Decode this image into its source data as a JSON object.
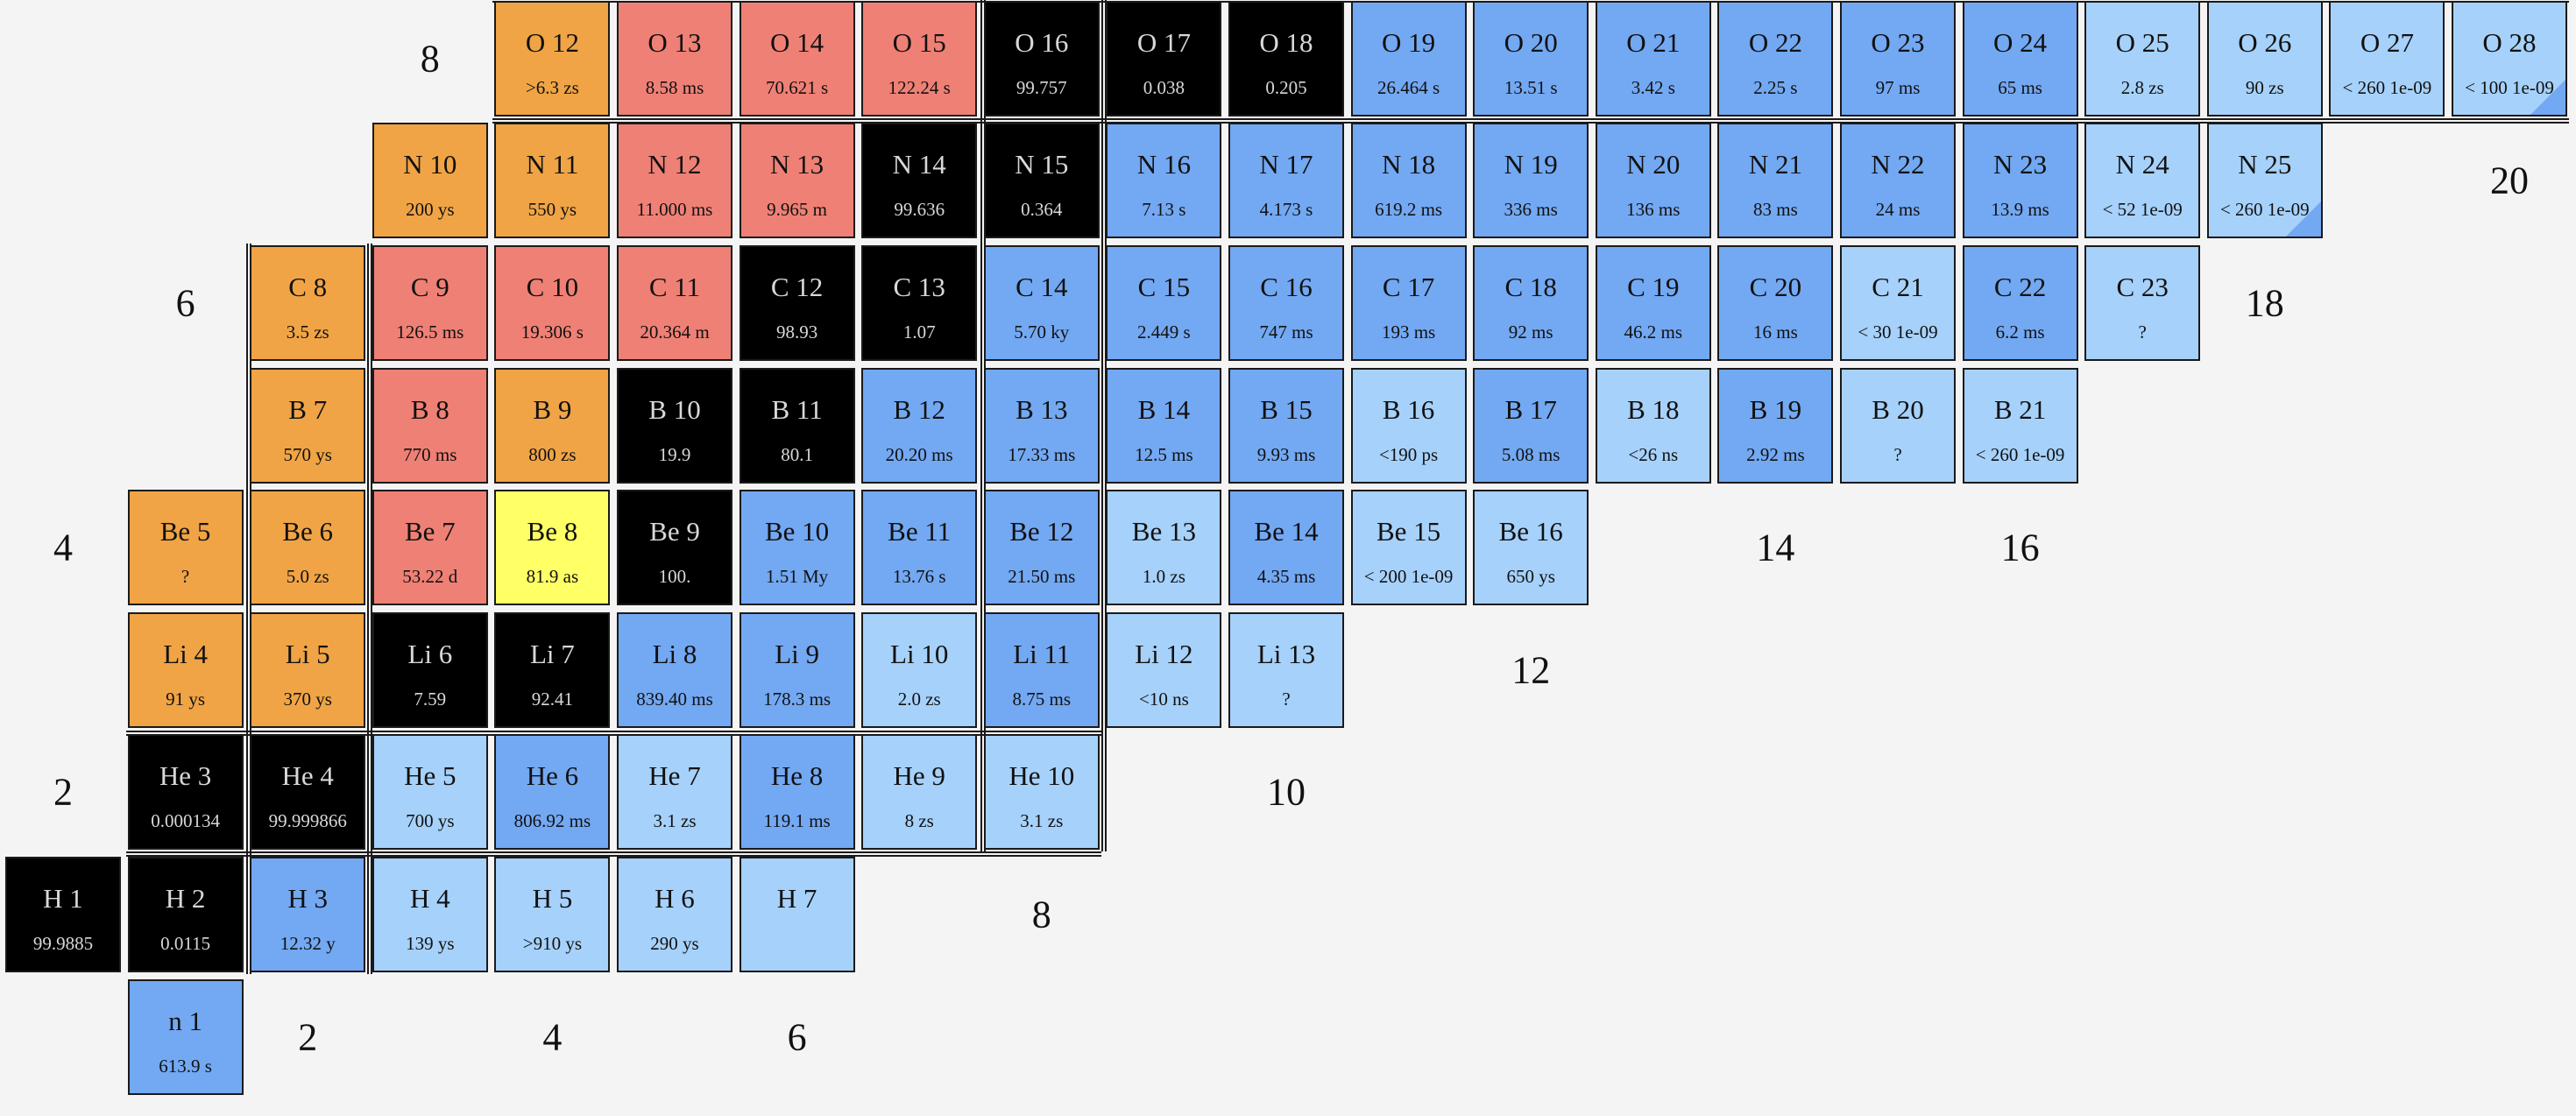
{
  "chart_data": {
    "type": "table",
    "x_field": "neutron_number",
    "y_field": "proton_number",
    "legend_colors": {
      "stable": "#000000",
      "beta_minus": "#73a8f2",
      "neutron_emission": "#a6d1fa",
      "beta_plus": "#ef8075",
      "proton_emission": "#f0a445",
      "alpha": "#ffff66"
    },
    "nuclides": [
      {
        "symbol": "n 1",
        "value": "613.9 s",
        "z": 0,
        "n": 1,
        "mode": "beta_minus"
      },
      {
        "symbol": "H 1",
        "value": "99.9885",
        "z": 1,
        "n": 0,
        "mode": "stable"
      },
      {
        "symbol": "H 2",
        "value": "0.0115",
        "z": 1,
        "n": 1,
        "mode": "stable"
      },
      {
        "symbol": "H 3",
        "value": "12.32 y",
        "z": 1,
        "n": 2,
        "mode": "beta_minus"
      },
      {
        "symbol": "H 4",
        "value": "139 ys",
        "z": 1,
        "n": 3,
        "mode": "neutron_emission"
      },
      {
        "symbol": "H 5",
        "value": ">910 ys",
        "z": 1,
        "n": 4,
        "mode": "neutron_emission"
      },
      {
        "symbol": "H 6",
        "value": "290 ys",
        "z": 1,
        "n": 5,
        "mode": "neutron_emission"
      },
      {
        "symbol": "H 7",
        "value": "",
        "z": 1,
        "n": 6,
        "mode": "neutron_emission"
      },
      {
        "symbol": "He 3",
        "value": "0.000134",
        "z": 2,
        "n": 1,
        "mode": "stable"
      },
      {
        "symbol": "He 4",
        "value": "99.999866",
        "z": 2,
        "n": 2,
        "mode": "stable"
      },
      {
        "symbol": "He 5",
        "value": "700 ys",
        "z": 2,
        "n": 3,
        "mode": "neutron_emission"
      },
      {
        "symbol": "He 6",
        "value": "806.92 ms",
        "z": 2,
        "n": 4,
        "mode": "beta_minus"
      },
      {
        "symbol": "He 7",
        "value": "3.1 zs",
        "z": 2,
        "n": 5,
        "mode": "neutron_emission"
      },
      {
        "symbol": "He 8",
        "value": "119.1 ms",
        "z": 2,
        "n": 6,
        "mode": "beta_minus"
      },
      {
        "symbol": "He 9",
        "value": "8 zs",
        "z": 2,
        "n": 7,
        "mode": "neutron_emission"
      },
      {
        "symbol": "He 10",
        "value": "3.1 zs",
        "z": 2,
        "n": 8,
        "mode": "neutron_emission"
      },
      {
        "symbol": "Li 4",
        "value": "91 ys",
        "z": 3,
        "n": 1,
        "mode": "proton_emission"
      },
      {
        "symbol": "Li 5",
        "value": "370 ys",
        "z": 3,
        "n": 2,
        "mode": "proton_emission"
      },
      {
        "symbol": "Li 6",
        "value": "7.59",
        "z": 3,
        "n": 3,
        "mode": "stable"
      },
      {
        "symbol": "Li 7",
        "value": "92.41",
        "z": 3,
        "n": 4,
        "mode": "stable"
      },
      {
        "symbol": "Li 8",
        "value": "839.40 ms",
        "z": 3,
        "n": 5,
        "mode": "beta_minus"
      },
      {
        "symbol": "Li 9",
        "value": "178.3 ms",
        "z": 3,
        "n": 6,
        "mode": "beta_minus"
      },
      {
        "symbol": "Li 10",
        "value": "2.0 zs",
        "z": 3,
        "n": 7,
        "mode": "neutron_emission"
      },
      {
        "symbol": "Li 11",
        "value": "8.75 ms",
        "z": 3,
        "n": 8,
        "mode": "beta_minus"
      },
      {
        "symbol": "Li 12",
        "value": "<10 ns",
        "z": 3,
        "n": 9,
        "mode": "neutron_emission"
      },
      {
        "symbol": "Li 13",
        "value": "?",
        "z": 3,
        "n": 10,
        "mode": "neutron_emission"
      },
      {
        "symbol": "Be 5",
        "value": "?",
        "z": 4,
        "n": 1,
        "mode": "proton_emission"
      },
      {
        "symbol": "Be 6",
        "value": "5.0 zs",
        "z": 4,
        "n": 2,
        "mode": "proton_emission"
      },
      {
        "symbol": "Be 7",
        "value": "53.22 d",
        "z": 4,
        "n": 3,
        "mode": "beta_plus"
      },
      {
        "symbol": "Be 8",
        "value": "81.9 as",
        "z": 4,
        "n": 4,
        "mode": "alpha"
      },
      {
        "symbol": "Be 9",
        "value": "100.",
        "z": 4,
        "n": 5,
        "mode": "stable"
      },
      {
        "symbol": "Be 10",
        "value": "1.51 My",
        "z": 4,
        "n": 6,
        "mode": "beta_minus"
      },
      {
        "symbol": "Be 11",
        "value": "13.76 s",
        "z": 4,
        "n": 7,
        "mode": "beta_minus"
      },
      {
        "symbol": "Be 12",
        "value": "21.50 ms",
        "z": 4,
        "n": 8,
        "mode": "beta_minus"
      },
      {
        "symbol": "Be 13",
        "value": "1.0 zs",
        "z": 4,
        "n": 9,
        "mode": "neutron_emission"
      },
      {
        "symbol": "Be 14",
        "value": "4.35 ms",
        "z": 4,
        "n": 10,
        "mode": "beta_minus"
      },
      {
        "symbol": "Be 15",
        "value": "< 200 1e-09",
        "z": 4,
        "n": 11,
        "mode": "neutron_emission"
      },
      {
        "symbol": "Be 16",
        "value": "650 ys",
        "z": 4,
        "n": 12,
        "mode": "neutron_emission"
      },
      {
        "symbol": "B 7",
        "value": "570 ys",
        "z": 5,
        "n": 2,
        "mode": "proton_emission"
      },
      {
        "symbol": "B 8",
        "value": "770 ms",
        "z": 5,
        "n": 3,
        "mode": "beta_plus"
      },
      {
        "symbol": "B 9",
        "value": "800 zs",
        "z": 5,
        "n": 4,
        "mode": "proton_emission"
      },
      {
        "symbol": "B 10",
        "value": "19.9",
        "z": 5,
        "n": 5,
        "mode": "stable"
      },
      {
        "symbol": "B 11",
        "value": "80.1",
        "z": 5,
        "n": 6,
        "mode": "stable"
      },
      {
        "symbol": "B 12",
        "value": "20.20 ms",
        "z": 5,
        "n": 7,
        "mode": "beta_minus"
      },
      {
        "symbol": "B 13",
        "value": "17.33 ms",
        "z": 5,
        "n": 8,
        "mode": "beta_minus"
      },
      {
        "symbol": "B 14",
        "value": "12.5 ms",
        "z": 5,
        "n": 9,
        "mode": "beta_minus"
      },
      {
        "symbol": "B 15",
        "value": "9.93 ms",
        "z": 5,
        "n": 10,
        "mode": "beta_minus"
      },
      {
        "symbol": "B 16",
        "value": "<190 ps",
        "z": 5,
        "n": 11,
        "mode": "neutron_emission"
      },
      {
        "symbol": "B 17",
        "value": "5.08 ms",
        "z": 5,
        "n": 12,
        "mode": "beta_minus"
      },
      {
        "symbol": "B 18",
        "value": "<26 ns",
        "z": 5,
        "n": 13,
        "mode": "neutron_emission"
      },
      {
        "symbol": "B 19",
        "value": "2.92 ms",
        "z": 5,
        "n": 14,
        "mode": "beta_minus"
      },
      {
        "symbol": "B 20",
        "value": "?",
        "z": 5,
        "n": 15,
        "mode": "neutron_emission"
      },
      {
        "symbol": "B 21",
        "value": "< 260 1e-09",
        "z": 5,
        "n": 16,
        "mode": "neutron_emission"
      },
      {
        "symbol": "C 8",
        "value": "3.5 zs",
        "z": 6,
        "n": 2,
        "mode": "proton_emission"
      },
      {
        "symbol": "C 9",
        "value": "126.5 ms",
        "z": 6,
        "n": 3,
        "mode": "beta_plus"
      },
      {
        "symbol": "C 10",
        "value": "19.306 s",
        "z": 6,
        "n": 4,
        "mode": "beta_plus"
      },
      {
        "symbol": "C 11",
        "value": "20.364 m",
        "z": 6,
        "n": 5,
        "mode": "beta_plus"
      },
      {
        "symbol": "C 12",
        "value": "98.93",
        "z": 6,
        "n": 6,
        "mode": "stable"
      },
      {
        "symbol": "C 13",
        "value": "1.07",
        "z": 6,
        "n": 7,
        "mode": "stable"
      },
      {
        "symbol": "C 14",
        "value": "5.70 ky",
        "z": 6,
        "n": 8,
        "mode": "beta_minus"
      },
      {
        "symbol": "C 15",
        "value": "2.449 s",
        "z": 6,
        "n": 9,
        "mode": "beta_minus"
      },
      {
        "symbol": "C 16",
        "value": "747 ms",
        "z": 6,
        "n": 10,
        "mode": "beta_minus"
      },
      {
        "symbol": "C 17",
        "value": "193 ms",
        "z": 6,
        "n": 11,
        "mode": "beta_minus"
      },
      {
        "symbol": "C 18",
        "value": "92 ms",
        "z": 6,
        "n": 12,
        "mode": "beta_minus"
      },
      {
        "symbol": "C 19",
        "value": "46.2 ms",
        "z": 6,
        "n": 13,
        "mode": "beta_minus"
      },
      {
        "symbol": "C 20",
        "value": "16 ms",
        "z": 6,
        "n": 14,
        "mode": "beta_minus"
      },
      {
        "symbol": "C 21",
        "value": "< 30 1e-09",
        "z": 6,
        "n": 15,
        "mode": "neutron_emission"
      },
      {
        "symbol": "C 22",
        "value": "6.2 ms",
        "z": 6,
        "n": 16,
        "mode": "beta_minus"
      },
      {
        "symbol": "C 23",
        "value": "?",
        "z": 6,
        "n": 17,
        "mode": "neutron_emission"
      },
      {
        "symbol": "N 10",
        "value": "200 ys",
        "z": 7,
        "n": 3,
        "mode": "proton_emission"
      },
      {
        "symbol": "N 11",
        "value": "550 ys",
        "z": 7,
        "n": 4,
        "mode": "proton_emission"
      },
      {
        "symbol": "N 12",
        "value": "11.000 ms",
        "z": 7,
        "n": 5,
        "mode": "beta_plus"
      },
      {
        "symbol": "N 13",
        "value": "9.965 m",
        "z": 7,
        "n": 6,
        "mode": "beta_plus"
      },
      {
        "symbol": "N 14",
        "value": "99.636",
        "z": 7,
        "n": 7,
        "mode": "stable"
      },
      {
        "symbol": "N 15",
        "value": "0.364",
        "z": 7,
        "n": 8,
        "mode": "stable"
      },
      {
        "symbol": "N 16",
        "value": "7.13 s",
        "z": 7,
        "n": 9,
        "mode": "beta_minus"
      },
      {
        "symbol": "N 17",
        "value": "4.173 s",
        "z": 7,
        "n": 10,
        "mode": "beta_minus"
      },
      {
        "symbol": "N 18",
        "value": "619.2 ms",
        "z": 7,
        "n": 11,
        "mode": "beta_minus"
      },
      {
        "symbol": "N 19",
        "value": "336 ms",
        "z": 7,
        "n": 12,
        "mode": "beta_minus"
      },
      {
        "symbol": "N 20",
        "value": "136 ms",
        "z": 7,
        "n": 13,
        "mode": "beta_minus"
      },
      {
        "symbol": "N 21",
        "value": "83 ms",
        "z": 7,
        "n": 14,
        "mode": "beta_minus"
      },
      {
        "symbol": "N 22",
        "value": "24 ms",
        "z": 7,
        "n": 15,
        "mode": "beta_minus"
      },
      {
        "symbol": "N 23",
        "value": "13.9 ms",
        "z": 7,
        "n": 16,
        "mode": "beta_minus"
      },
      {
        "symbol": "N 24",
        "value": "< 52 1e-09",
        "z": 7,
        "n": 17,
        "mode": "neutron_emission"
      },
      {
        "symbol": "N 25",
        "value": "< 260 1e-09",
        "z": 7,
        "n": 18,
        "mode": "neutron_emission",
        "corner": true
      },
      {
        "symbol": "O 12",
        "value": ">6.3 zs",
        "z": 8,
        "n": 4,
        "mode": "proton_emission"
      },
      {
        "symbol": "O 13",
        "value": "8.58 ms",
        "z": 8,
        "n": 5,
        "mode": "beta_plus"
      },
      {
        "symbol": "O 14",
        "value": "70.621 s",
        "z": 8,
        "n": 6,
        "mode": "beta_plus"
      },
      {
        "symbol": "O 15",
        "value": "122.24 s",
        "z": 8,
        "n": 7,
        "mode": "beta_plus"
      },
      {
        "symbol": "O 16",
        "value": "99.757",
        "z": 8,
        "n": 8,
        "mode": "stable"
      },
      {
        "symbol": "O 17",
        "value": "0.038",
        "z": 8,
        "n": 9,
        "mode": "stable"
      },
      {
        "symbol": "O 18",
        "value": "0.205",
        "z": 8,
        "n": 10,
        "mode": "stable"
      },
      {
        "symbol": "O 19",
        "value": "26.464 s",
        "z": 8,
        "n": 11,
        "mode": "beta_minus"
      },
      {
        "symbol": "O 20",
        "value": "13.51 s",
        "z": 8,
        "n": 12,
        "mode": "beta_minus"
      },
      {
        "symbol": "O 21",
        "value": "3.42 s",
        "z": 8,
        "n": 13,
        "mode": "beta_minus"
      },
      {
        "symbol": "O 22",
        "value": "2.25 s",
        "z": 8,
        "n": 14,
        "mode": "beta_minus"
      },
      {
        "symbol": "O 23",
        "value": "97 ms",
        "z": 8,
        "n": 15,
        "mode": "beta_minus"
      },
      {
        "symbol": "O 24",
        "value": "65 ms",
        "z": 8,
        "n": 16,
        "mode": "beta_minus"
      },
      {
        "symbol": "O 25",
        "value": "2.8 zs",
        "z": 8,
        "n": 17,
        "mode": "neutron_emission"
      },
      {
        "symbol": "O 26",
        "value": "90 zs",
        "z": 8,
        "n": 18,
        "mode": "neutron_emission"
      },
      {
        "symbol": "O 27",
        "value": "< 260 1e-09",
        "z": 8,
        "n": 19,
        "mode": "neutron_emission"
      },
      {
        "symbol": "O 28",
        "value": "< 100 1e-09",
        "z": 8,
        "n": 20,
        "mode": "neutron_emission",
        "corner": true
      }
    ],
    "magic_labels": [
      {
        "text": "2",
        "axis": "n",
        "index": 2
      },
      {
        "text": "4",
        "axis": "n",
        "index": 4
      },
      {
        "text": "6",
        "axis": "n",
        "index": 6
      },
      {
        "text": "8",
        "axis": "n",
        "index": 8
      },
      {
        "text": "10",
        "axis": "n",
        "index": 10
      },
      {
        "text": "12",
        "axis": "n",
        "index": 12
      },
      {
        "text": "14",
        "axis": "n",
        "index": 14
      },
      {
        "text": "16",
        "axis": "n",
        "index": 16
      },
      {
        "text": "18",
        "axis": "n",
        "index": 18
      },
      {
        "text": "20",
        "axis": "n",
        "index": 20
      },
      {
        "text": "2",
        "axis": "z",
        "index": 2
      },
      {
        "text": "4",
        "axis": "z",
        "index": 4
      },
      {
        "text": "6",
        "axis": "z",
        "index": 6
      },
      {
        "text": "8",
        "axis": "z",
        "index": 8
      }
    ]
  }
}
